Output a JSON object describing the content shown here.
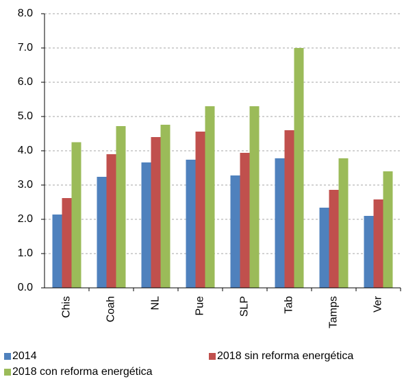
{
  "chart_data": {
    "type": "bar",
    "categories": [
      "Chis",
      "Coah",
      "NL",
      "Pue",
      "SLP",
      "Tab",
      "Tamps",
      "Ver"
    ],
    "series": [
      {
        "name": "2014",
        "color": "#4f81bd",
        "values": [
          2.14,
          3.24,
          3.66,
          3.74,
          3.28,
          3.78,
          2.34,
          2.1
        ]
      },
      {
        "name": "2018 sin reforma energética",
        "color": "#c0504d",
        "values": [
          2.62,
          3.9,
          4.4,
          4.56,
          3.94,
          4.6,
          2.86,
          2.58
        ]
      },
      {
        "name": "2018 con reforma energética",
        "color": "#9bbb59",
        "values": [
          4.25,
          4.72,
          4.76,
          5.3,
          5.3,
          7.0,
          3.78,
          3.4
        ]
      }
    ],
    "ylim": [
      0,
      8
    ],
    "yticks": [
      {
        "value": 0,
        "label": "0.0"
      },
      {
        "value": 1,
        "label": "1.0"
      },
      {
        "value": 2,
        "label": "2.0"
      },
      {
        "value": 3,
        "label": "3.0"
      },
      {
        "value": 4,
        "label": "4.0"
      },
      {
        "value": 5,
        "label": "5.0"
      },
      {
        "value": 6,
        "label": "6.0"
      },
      {
        "value": 7,
        "label": "7.0"
      },
      {
        "value": 8,
        "label": "8.0"
      }
    ],
    "grid": true,
    "legend": "bottom"
  }
}
